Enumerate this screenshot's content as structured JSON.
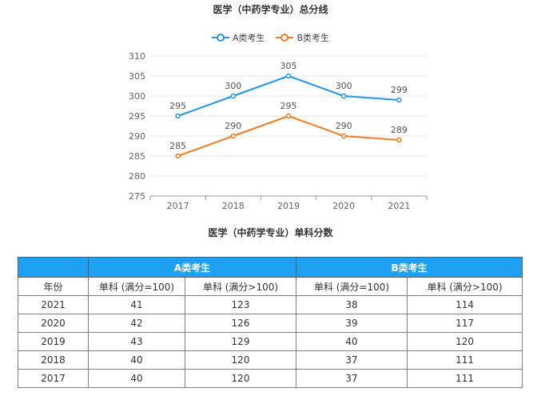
{
  "chart_data": {
    "type": "line",
    "title": "医学（中药学专业）总分线",
    "categories": [
      "2017",
      "2018",
      "2019",
      "2020",
      "2021"
    ],
    "ylim": [
      275,
      310
    ],
    "yticks": [
      275,
      280,
      285,
      290,
      295,
      300,
      305,
      310
    ],
    "grid": true,
    "legend_position": "top-center",
    "series": [
      {
        "name": "A类考生",
        "values": [
          295,
          300,
          305,
          300,
          299
        ],
        "color": "#2196f3"
      },
      {
        "name": "B类考生",
        "values": [
          285,
          290,
          295,
          290,
          289
        ],
        "color": "#f57c20"
      }
    ]
  },
  "table": {
    "title": "医学（中药学专业）单科分数",
    "group_a": "A类考生",
    "group_b": "B类考生",
    "headers": [
      "年份",
      "单科 (满分=100)",
      "单科 (满分>100)",
      "单科 (满分=100)",
      "单科 (满分>100)"
    ],
    "rows": [
      [
        "2021",
        "41",
        "123",
        "38",
        "114"
      ],
      [
        "2020",
        "42",
        "126",
        "39",
        "117"
      ],
      [
        "2019",
        "43",
        "129",
        "40",
        "120"
      ],
      [
        "2018",
        "40",
        "120",
        "37",
        "111"
      ],
      [
        "2017",
        "40",
        "120",
        "37",
        "111"
      ]
    ]
  }
}
